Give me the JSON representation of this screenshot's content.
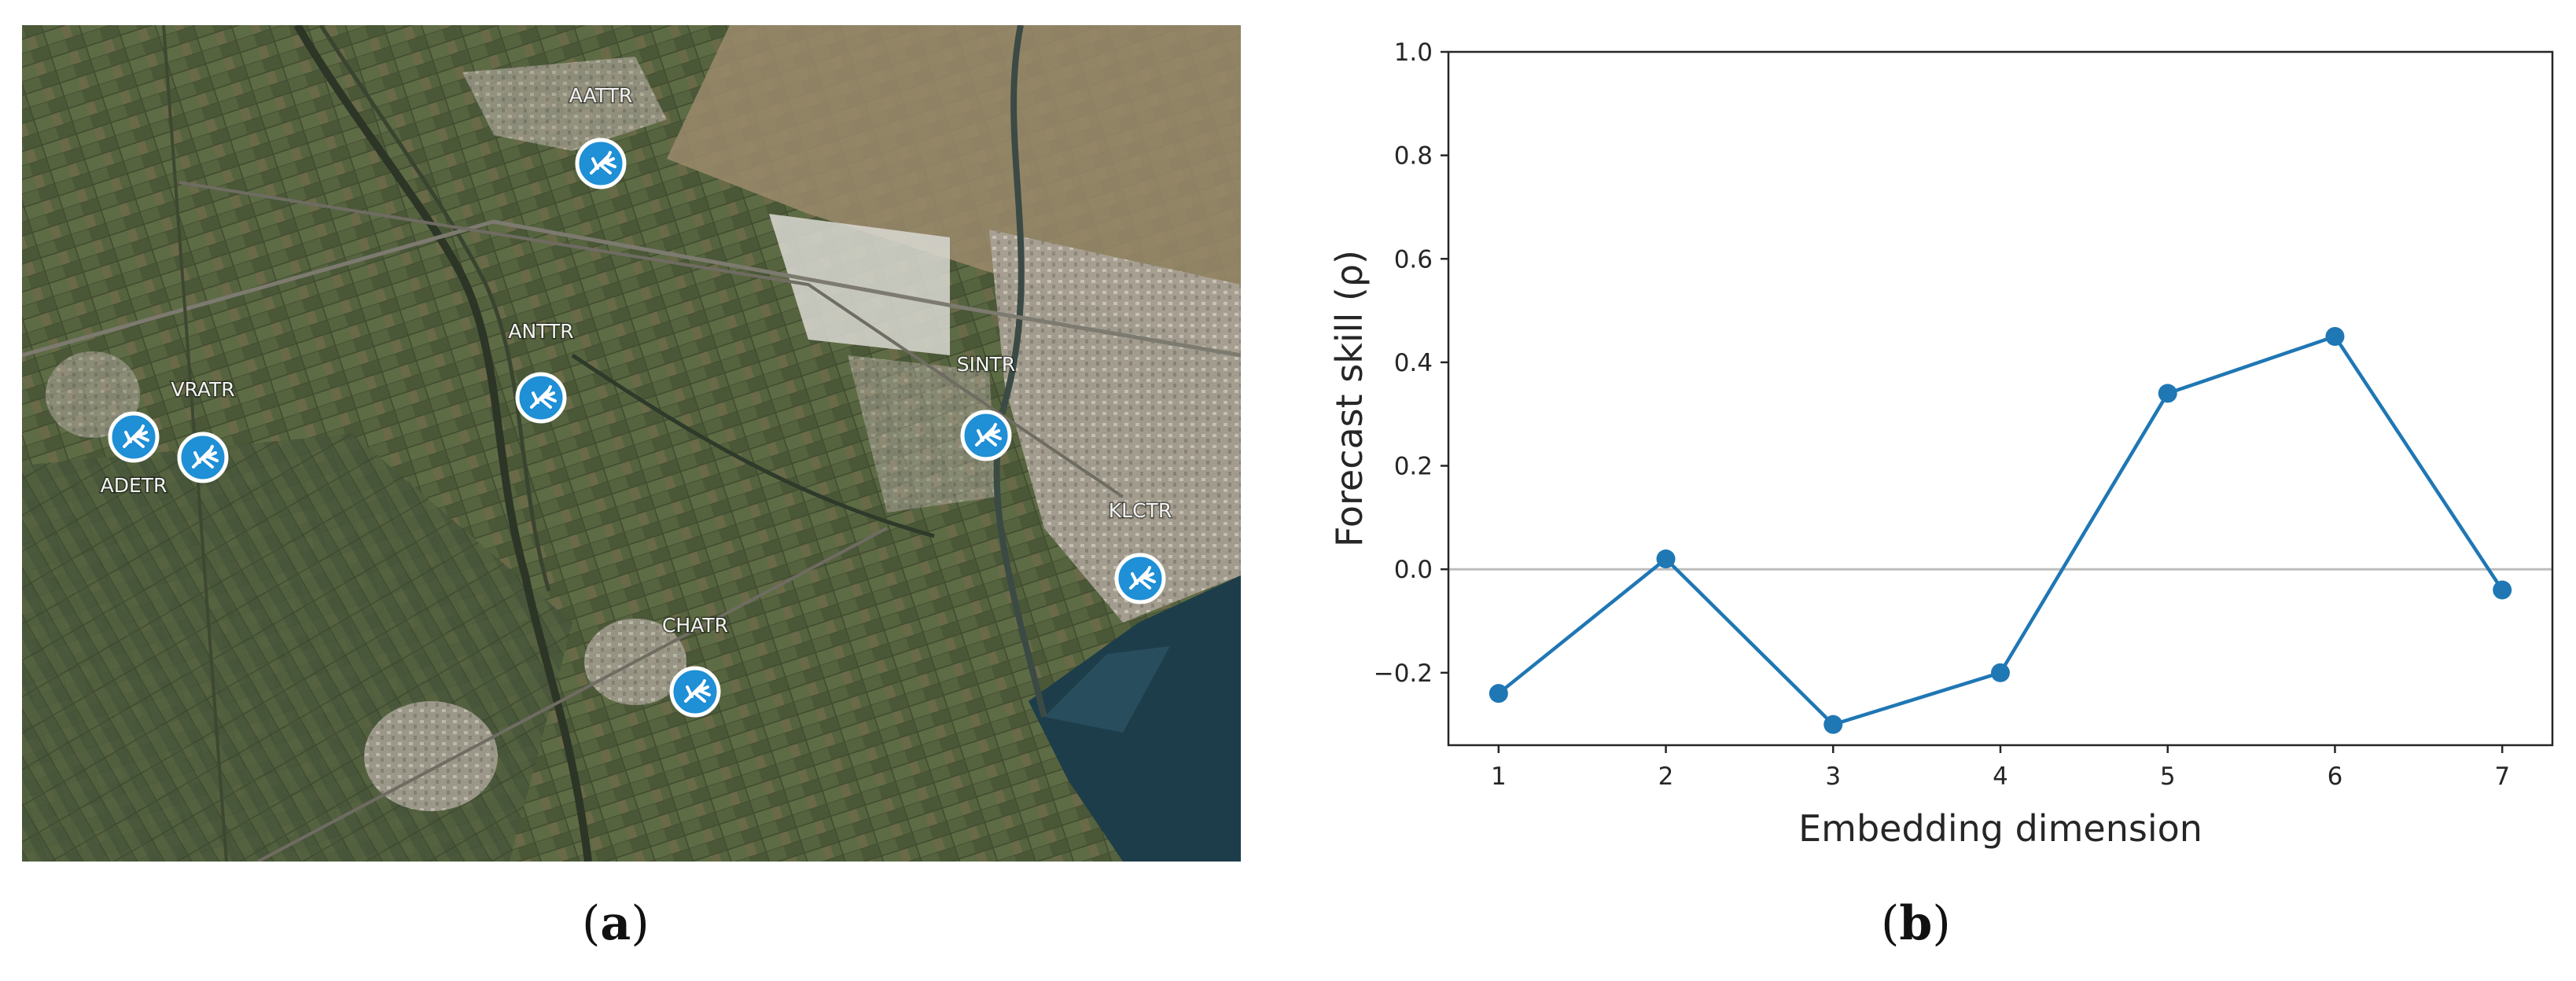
{
  "captions": {
    "a": "a",
    "b": "b"
  },
  "map": {
    "stations": [
      {
        "name": "AATTR"
      },
      {
        "name": "ANTTR"
      },
      {
        "name": "VRATR"
      },
      {
        "name": "ADETR"
      },
      {
        "name": "SINTR"
      },
      {
        "name": "KLCTR"
      },
      {
        "name": "CHATR"
      }
    ],
    "marker_icon": "mosquito-icon",
    "colors": {
      "marker": "#1f8fd6",
      "land": "#4e5a3c",
      "sea": "#1e3d4a"
    }
  },
  "chart_data": {
    "type": "line",
    "x": [
      1,
      2,
      3,
      4,
      5,
      6,
      7
    ],
    "series": [
      {
        "values": [
          -0.24,
          0.02,
          -0.3,
          -0.2,
          0.34,
          0.45,
          -0.04
        ],
        "color": "#1f77b4"
      }
    ],
    "xlabel": "Embedding dimension",
    "ylabel": "Forecast skill (ρ)",
    "xticks": [
      "1",
      "2",
      "3",
      "4",
      "5",
      "6",
      "7"
    ],
    "yticks": [
      "−0.2",
      "0.0",
      "0.2",
      "0.4",
      "0.6",
      "0.8",
      "1.0"
    ],
    "ytick_values": [
      -0.2,
      0.0,
      0.2,
      0.4,
      0.6,
      0.8,
      1.0
    ],
    "xlim": [
      0.7,
      7.3
    ],
    "ylim": [
      -0.34,
      1.0
    ],
    "hline": 0.0,
    "grid": false
  }
}
